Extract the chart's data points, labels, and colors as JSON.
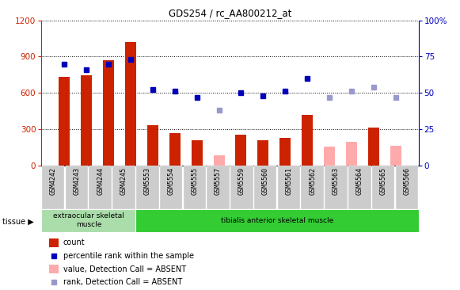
{
  "title": "GDS254 / rc_AA800212_at",
  "categories": [
    "GSM4242",
    "GSM4243",
    "GSM4244",
    "GSM4245",
    "GSM5553",
    "GSM5554",
    "GSM5555",
    "GSM5557",
    "GSM5559",
    "GSM5560",
    "GSM5561",
    "GSM5562",
    "GSM5563",
    "GSM5564",
    "GSM5565",
    "GSM5566"
  ],
  "count_values": [
    730,
    745,
    870,
    1020,
    330,
    265,
    205,
    null,
    255,
    210,
    230,
    420,
    null,
    null,
    310,
    null
  ],
  "count_absent": [
    null,
    null,
    null,
    null,
    null,
    null,
    null,
    80,
    null,
    null,
    null,
    null,
    155,
    195,
    null,
    160
  ],
  "percentile_present_pct": [
    70,
    66,
    70,
    73,
    52,
    51,
    47,
    null,
    50,
    48,
    51,
    60,
    null,
    null,
    null,
    null
  ],
  "percentile_absent_pct": [
    null,
    null,
    null,
    null,
    null,
    null,
    null,
    38,
    null,
    null,
    null,
    null,
    47,
    51,
    54,
    47
  ],
  "ylim_left": [
    0,
    1200
  ],
  "ylim_right": [
    0,
    100
  ],
  "left_ticks": [
    0,
    300,
    600,
    900,
    1200
  ],
  "right_ticks": [
    0,
    25,
    50,
    75,
    100
  ],
  "tissue_groups": [
    {
      "label": "extraocular skeletal\nmuscle",
      "start": 0,
      "end": 4,
      "color": "#aaddaa"
    },
    {
      "label": "tibialis anterior skeletal muscle",
      "start": 4,
      "end": 16,
      "color": "#33cc33"
    }
  ],
  "bar_color_present": "#cc2200",
  "bar_color_absent": "#ffaaaa",
  "dot_color_present": "#0000bb",
  "dot_color_absent": "#9999cc",
  "bar_width": 0.5,
  "legend_items": [
    {
      "label": "count",
      "color": "#cc2200",
      "type": "bar"
    },
    {
      "label": "percentile rank within the sample",
      "color": "#0000bb",
      "type": "dot"
    },
    {
      "label": "value, Detection Call = ABSENT",
      "color": "#ffaaaa",
      "type": "bar"
    },
    {
      "label": "rank, Detection Call = ABSENT",
      "color": "#9999cc",
      "type": "dot"
    }
  ],
  "background_color": "#ffffff",
  "tick_color_left": "#cc2200",
  "tick_color_right": "#0000bb",
  "xtick_bg": "#cccccc"
}
